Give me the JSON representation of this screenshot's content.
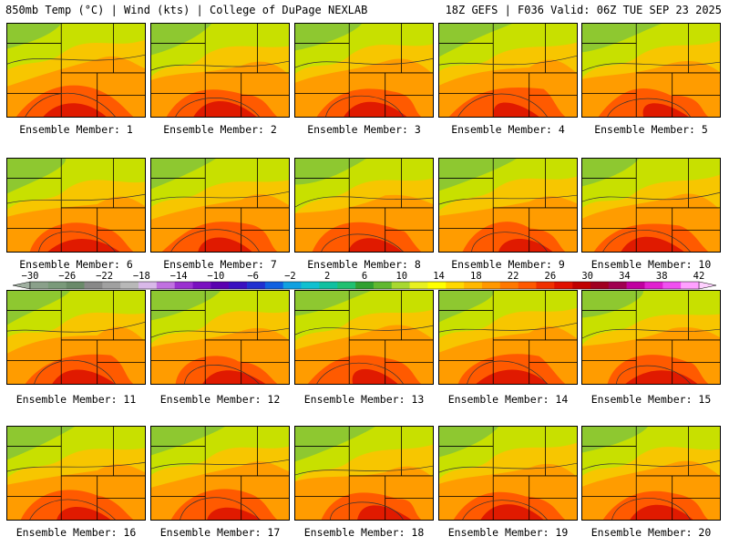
{
  "header": {
    "left": "850mb Temp (°C) | Wind (kts) | College of DuPage NEXLAB",
    "right": "18Z GEFS | F036 Valid: 06Z TUE SEP 23 2025"
  },
  "panels": [
    {
      "label": "Ensemble Member: 1"
    },
    {
      "label": "Ensemble Member: 2"
    },
    {
      "label": "Ensemble Member: 3"
    },
    {
      "label": "Ensemble Member: 4"
    },
    {
      "label": "Ensemble Member: 5"
    },
    {
      "label": "Ensemble Member: 6"
    },
    {
      "label": "Ensemble Member: 7"
    },
    {
      "label": "Ensemble Member: 8"
    },
    {
      "label": "Ensemble Member: 9"
    },
    {
      "label": "Ensemble Member: 10"
    },
    {
      "label": "Ensemble Member: 11"
    },
    {
      "label": "Ensemble Member: 12"
    },
    {
      "label": "Ensemble Member: 13"
    },
    {
      "label": "Ensemble Member: 14"
    },
    {
      "label": "Ensemble Member: 15"
    },
    {
      "label": "Ensemble Member: 16"
    },
    {
      "label": "Ensemble Member: 17"
    },
    {
      "label": "Ensemble Member: 18"
    },
    {
      "label": "Ensemble Member: 19"
    },
    {
      "label": "Ensemble Member: 20"
    }
  ],
  "colorbar": {
    "ticks": [
      "−30",
      "−26",
      "−22",
      "−18",
      "−14",
      "−10",
      "−6",
      "−2",
      "2",
      "6",
      "10",
      "14",
      "18",
      "22",
      "26",
      "30",
      "34",
      "38",
      "42"
    ],
    "colors": [
      "#8aa08a",
      "#7a9a7a",
      "#6a8a6a",
      "#888888",
      "#a0a0a0",
      "#b8b8b8",
      "#d8b8e8",
      "#c070e0",
      "#9a30d0",
      "#7a10c0",
      "#5a00b0",
      "#3a10c0",
      "#2030d0",
      "#1060e0",
      "#10a0e0",
      "#10c0d0",
      "#10c0a0",
      "#20c070",
      "#30a030",
      "#60b830",
      "#a8d830",
      "#e8f020",
      "#ffff00",
      "#ffd800",
      "#ffb800",
      "#ff9800",
      "#ff7800",
      "#ff5800",
      "#f03000",
      "#e01000",
      "#c00000",
      "#a00020",
      "#a00050",
      "#c000a0",
      "#e020d0",
      "#f050f0",
      "#ffa0ff"
    ]
  }
}
